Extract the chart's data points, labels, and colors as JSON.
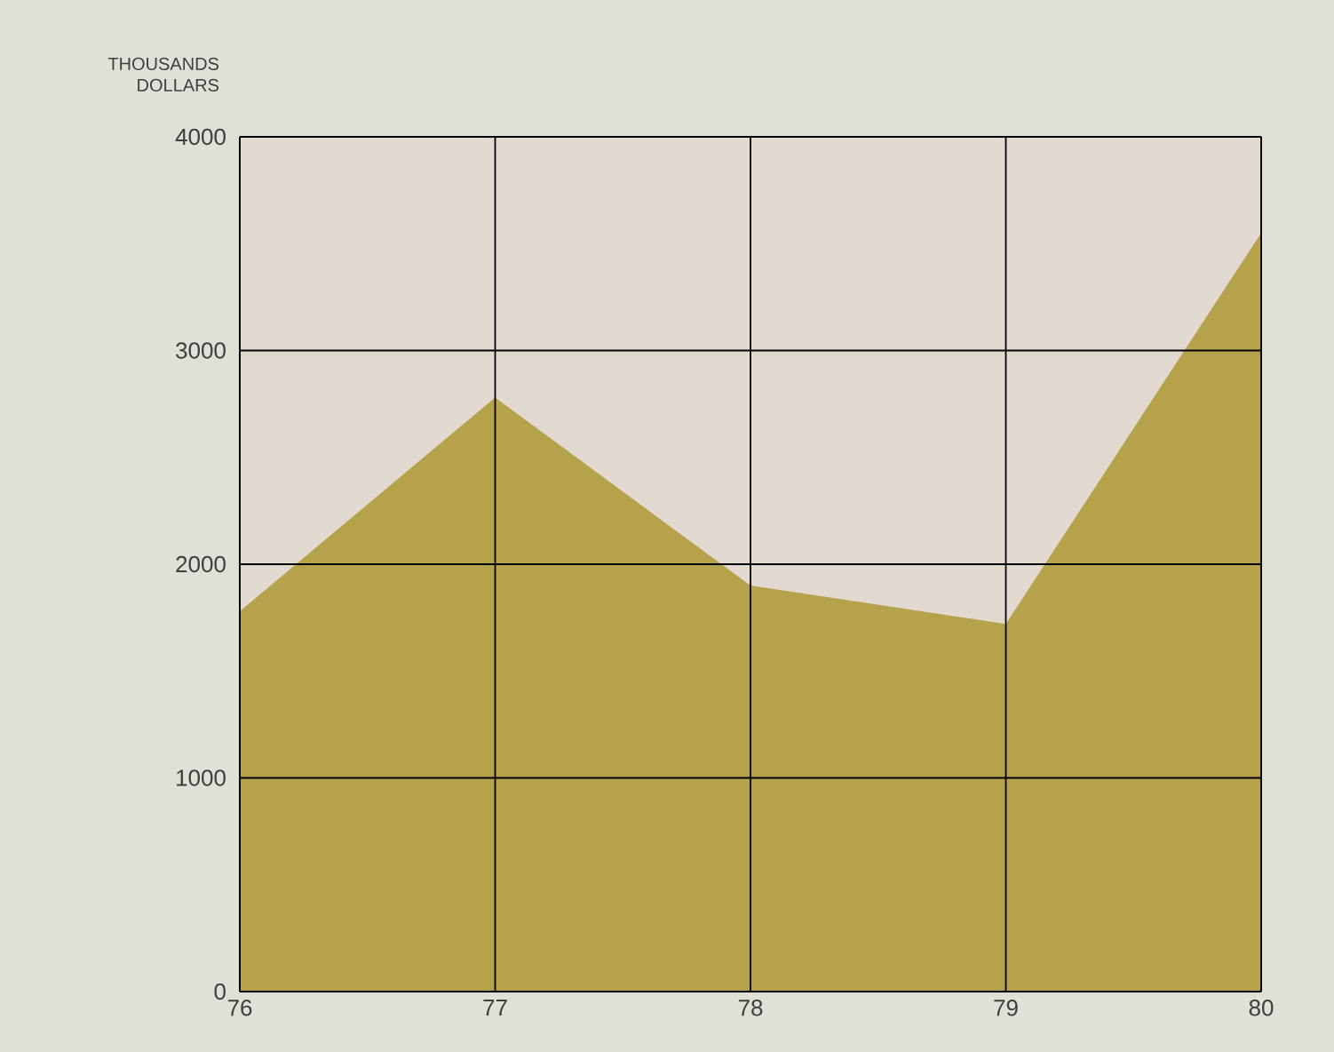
{
  "chart_data": {
    "type": "area",
    "ylabel": "THOUSANDS DOLLARS",
    "x": [
      76,
      77,
      78,
      79,
      80
    ],
    "values": [
      1780,
      2780,
      1900,
      1720,
      3550
    ],
    "color": "#b5a24a",
    "xlim": [
      76,
      80
    ],
    "xticks": [
      76,
      77,
      78,
      79,
      80
    ],
    "ylim": [
      0,
      4000
    ],
    "yticks": [
      0,
      1000,
      2000,
      3000,
      4000
    ],
    "grid": true
  }
}
